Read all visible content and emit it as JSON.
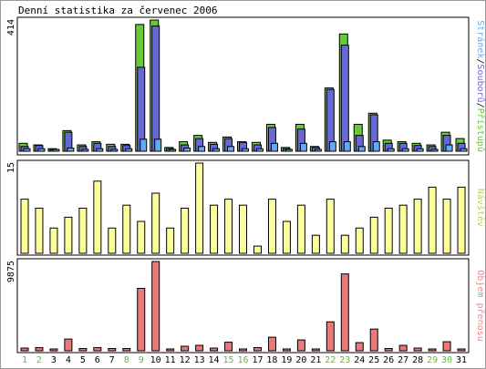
{
  "title": "Denní statistika za červenec 2006",
  "colors": {
    "hits": "#66cc33",
    "files": "#6666dd",
    "pages": "#66aaee",
    "visits": "#ffff99",
    "kbytes": "#ee7777",
    "weekend_label": "#66bb33",
    "text": "#000000"
  },
  "chart_data": [
    {
      "type": "bar",
      "id": "hits-files-pages",
      "ylabel": "414",
      "ylim": [
        0,
        414
      ],
      "legend": {
        "placement": "right",
        "parts": [
          "Stránek",
          "Souborů",
          "Přístupů"
        ],
        "separator": "/"
      },
      "categories": [
        "1",
        "2",
        "3",
        "4",
        "5",
        "6",
        "7",
        "8",
        "9",
        "10",
        "11",
        "12",
        "13",
        "14",
        "15",
        "16",
        "17",
        "18",
        "19",
        "20",
        "21",
        "22",
        "23",
        "24",
        "25",
        "26",
        "27",
        "28",
        "29",
        "30",
        "31"
      ],
      "series": [
        {
          "name": "Přístupů",
          "values": [
            25,
            20,
            8,
            65,
            20,
            30,
            22,
            22,
            400,
            414,
            12,
            30,
            50,
            28,
            45,
            30,
            28,
            85,
            12,
            85,
            15,
            200,
            370,
            85,
            120,
            35,
            30,
            25,
            20,
            60,
            40
          ]
        },
        {
          "name": "Souborů",
          "values": [
            15,
            18,
            5,
            60,
            15,
            25,
            15,
            18,
            265,
            395,
            8,
            20,
            40,
            22,
            40,
            28,
            20,
            75,
            8,
            70,
            12,
            195,
            335,
            50,
            115,
            25,
            25,
            18,
            15,
            50,
            25
          ]
        },
        {
          "name": "Stránek",
          "values": [
            8,
            8,
            3,
            10,
            6,
            8,
            6,
            8,
            38,
            38,
            4,
            10,
            15,
            8,
            15,
            8,
            8,
            25,
            5,
            25,
            6,
            30,
            30,
            15,
            30,
            8,
            8,
            8,
            6,
            20,
            8
          ]
        }
      ]
    },
    {
      "type": "bar",
      "id": "visits",
      "ylabel": "15",
      "ylim": [
        0,
        15
      ],
      "legend": {
        "placement": "right",
        "parts": [
          "Návštěv"
        ]
      },
      "categories": [
        "1",
        "2",
        "3",
        "4",
        "5",
        "6",
        "7",
        "8",
        "9",
        "10",
        "11",
        "12",
        "13",
        "14",
        "15",
        "16",
        "17",
        "18",
        "19",
        "20",
        "21",
        "22",
        "23",
        "24",
        "25",
        "26",
        "27",
        "28",
        "29",
        "30",
        "31"
      ],
      "series": [
        {
          "name": "Návštěv",
          "values": [
            9,
            7.5,
            4.2,
            6,
            7.5,
            12,
            4.2,
            8,
            5.3,
            10,
            4.2,
            7.5,
            15,
            8,
            9,
            8,
            1.2,
            9,
            5.3,
            8,
            3,
            9,
            3,
            4.2,
            6,
            7.5,
            8,
            9,
            11,
            9,
            11
          ]
        }
      ]
    },
    {
      "type": "bar",
      "id": "kbytes",
      "ylabel": "9875",
      "ylim": [
        0,
        9875
      ],
      "legend": {
        "placement": "right",
        "parts": [
          "Objem přenosu"
        ]
      },
      "categories": [
        "1",
        "2",
        "3",
        "4",
        "5",
        "6",
        "7",
        "8",
        "9",
        "10",
        "11",
        "12",
        "13",
        "14",
        "15",
        "16",
        "17",
        "18",
        "19",
        "20",
        "21",
        "22",
        "23",
        "24",
        "25",
        "26",
        "27",
        "28",
        "29",
        "30",
        "31"
      ],
      "series": [
        {
          "name": "Objem přenosu",
          "values": [
            300,
            350,
            80,
            1300,
            250,
            350,
            250,
            250,
            6900,
            9875,
            80,
            500,
            600,
            300,
            950,
            100,
            350,
            1500,
            100,
            1200,
            150,
            3200,
            8500,
            900,
            2400,
            250,
            600,
            300,
            150,
            1000,
            150
          ]
        }
      ]
    }
  ],
  "weekend_days": [
    "1",
    "2",
    "8",
    "9",
    "15",
    "16",
    "22",
    "23",
    "29",
    "30"
  ]
}
